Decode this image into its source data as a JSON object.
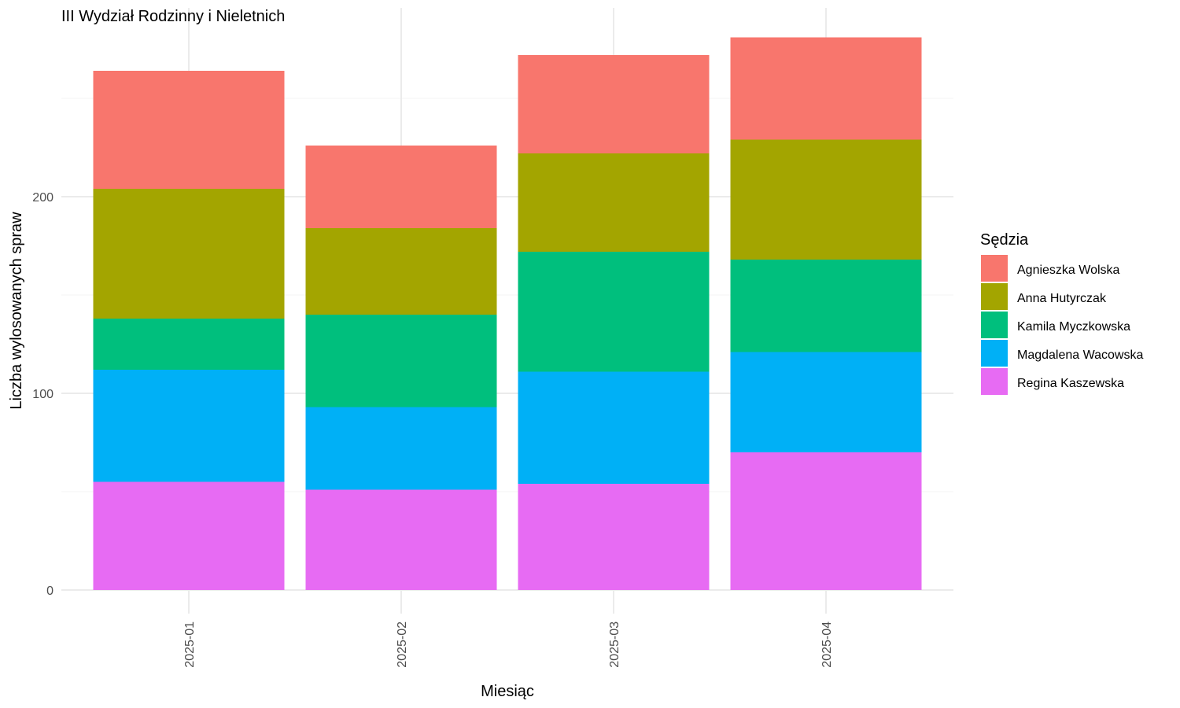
{
  "chart_data": {
    "type": "bar",
    "stacked": true,
    "title": "III Wydział Rodzinny i Nieletnich",
    "xlabel": "Miesiąc",
    "ylabel": "Liczba wylosowanych spraw",
    "categories": [
      "2025-01",
      "2025-02",
      "2025-03",
      "2025-04"
    ],
    "ylim": [
      0,
      295
    ],
    "yticks": [
      0,
      100,
      200
    ],
    "grid": true,
    "legend": {
      "title": "Sędzia",
      "placement": "right"
    },
    "series": [
      {
        "name": "Regina Kaszewska",
        "color": "#E76BF3",
        "values": [
          55,
          51,
          54,
          70
        ]
      },
      {
        "name": "Magdalena Wacowska",
        "color": "#00B0F6",
        "values": [
          57,
          42,
          57,
          51
        ]
      },
      {
        "name": "Kamila Myczkowska",
        "color": "#00BF7D",
        "values": [
          26,
          47,
          61,
          47
        ]
      },
      {
        "name": "Anna Hutyrczak",
        "color": "#A3A500",
        "values": [
          66,
          44,
          50,
          61
        ]
      },
      {
        "name": "Agnieszka Wolska",
        "color": "#F8766D",
        "values": [
          60,
          42,
          50,
          52
        ]
      }
    ],
    "legend_order": [
      "Agnieszka Wolska",
      "Anna Hutyrczak",
      "Kamila Myczkowska",
      "Magdalena Wacowska",
      "Regina Kaszewska"
    ]
  }
}
